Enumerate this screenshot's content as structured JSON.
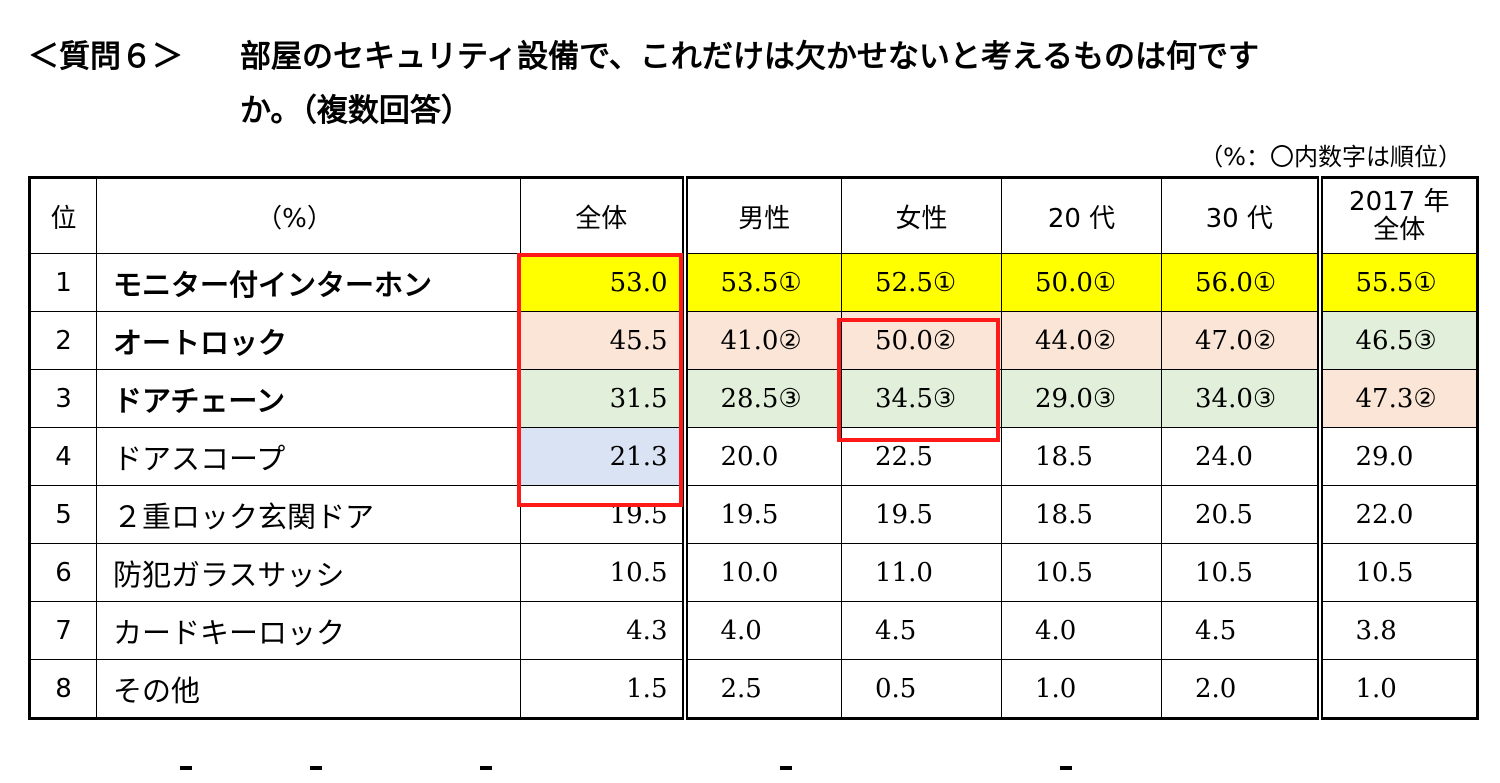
{
  "question": {
    "prefix": "＜質問６＞",
    "line1": "部屋のセキュリティ設備で、これだけは欠かせないと考えるものは何です",
    "line2": "か。（複数回答）"
  },
  "unit_note": "（%：〇内数字は順位）",
  "table": {
    "headers": {
      "rank": "位",
      "item": "（%）",
      "total": "全体",
      "male": "男性",
      "female": "女性",
      "age20": "20 代",
      "age30": "30 代",
      "y2017_line1": "2017 年",
      "y2017_line2": "全体"
    },
    "rows": [
      {
        "rank": "1",
        "item": "モニター付インターホン",
        "total": "53.0",
        "male": "53.5①",
        "female": "52.5①",
        "age20": "50.0①",
        "age30": "56.0①",
        "y2017": "55.5①"
      },
      {
        "rank": "2",
        "item": "オートロック",
        "total": "45.5",
        "male": "41.0②",
        "female": "50.0②",
        "age20": "44.0②",
        "age30": "47.0②",
        "y2017": "46.5③"
      },
      {
        "rank": "3",
        "item": "ドアチェーン",
        "total": "31.5",
        "male": "28.5③",
        "female": "34.5③",
        "age20": "29.0③",
        "age30": "34.0③",
        "y2017": "47.3②"
      },
      {
        "rank": "4",
        "item": "ドアスコープ",
        "total": "21.3",
        "male": "20.0",
        "female": "22.5",
        "age20": "18.5",
        "age30": "24.0",
        "y2017": "29.0"
      },
      {
        "rank": "5",
        "item": "２重ロック玄関ドア",
        "total": "19.5",
        "male": "19.5",
        "female": "19.5",
        "age20": "18.5",
        "age30": "20.5",
        "y2017": "22.0"
      },
      {
        "rank": "6",
        "item": "防犯ガラスサッシ",
        "total": "10.5",
        "male": "10.0",
        "female": "11.0",
        "age20": "10.5",
        "age30": "10.5",
        "y2017": "10.5"
      },
      {
        "rank": "7",
        "item": "カードキーロック",
        "total": "4.3",
        "male": "4.0",
        "female": "4.5",
        "age20": "4.0",
        "age30": "4.5",
        "y2017": "3.8"
      },
      {
        "rank": "8",
        "item": "その他",
        "total": "1.5",
        "male": "2.5",
        "female": "0.5",
        "age20": "1.0",
        "age30": "2.0",
        "y2017": "1.0"
      }
    ]
  },
  "colors": {
    "rank1_fill": "#ffff00",
    "rank2_fill": "#fbe5d6",
    "rank3_fill": "#e2efda",
    "rank4_total_fill": "#dae3f3",
    "highlight_border": "#ff1a1a"
  }
}
